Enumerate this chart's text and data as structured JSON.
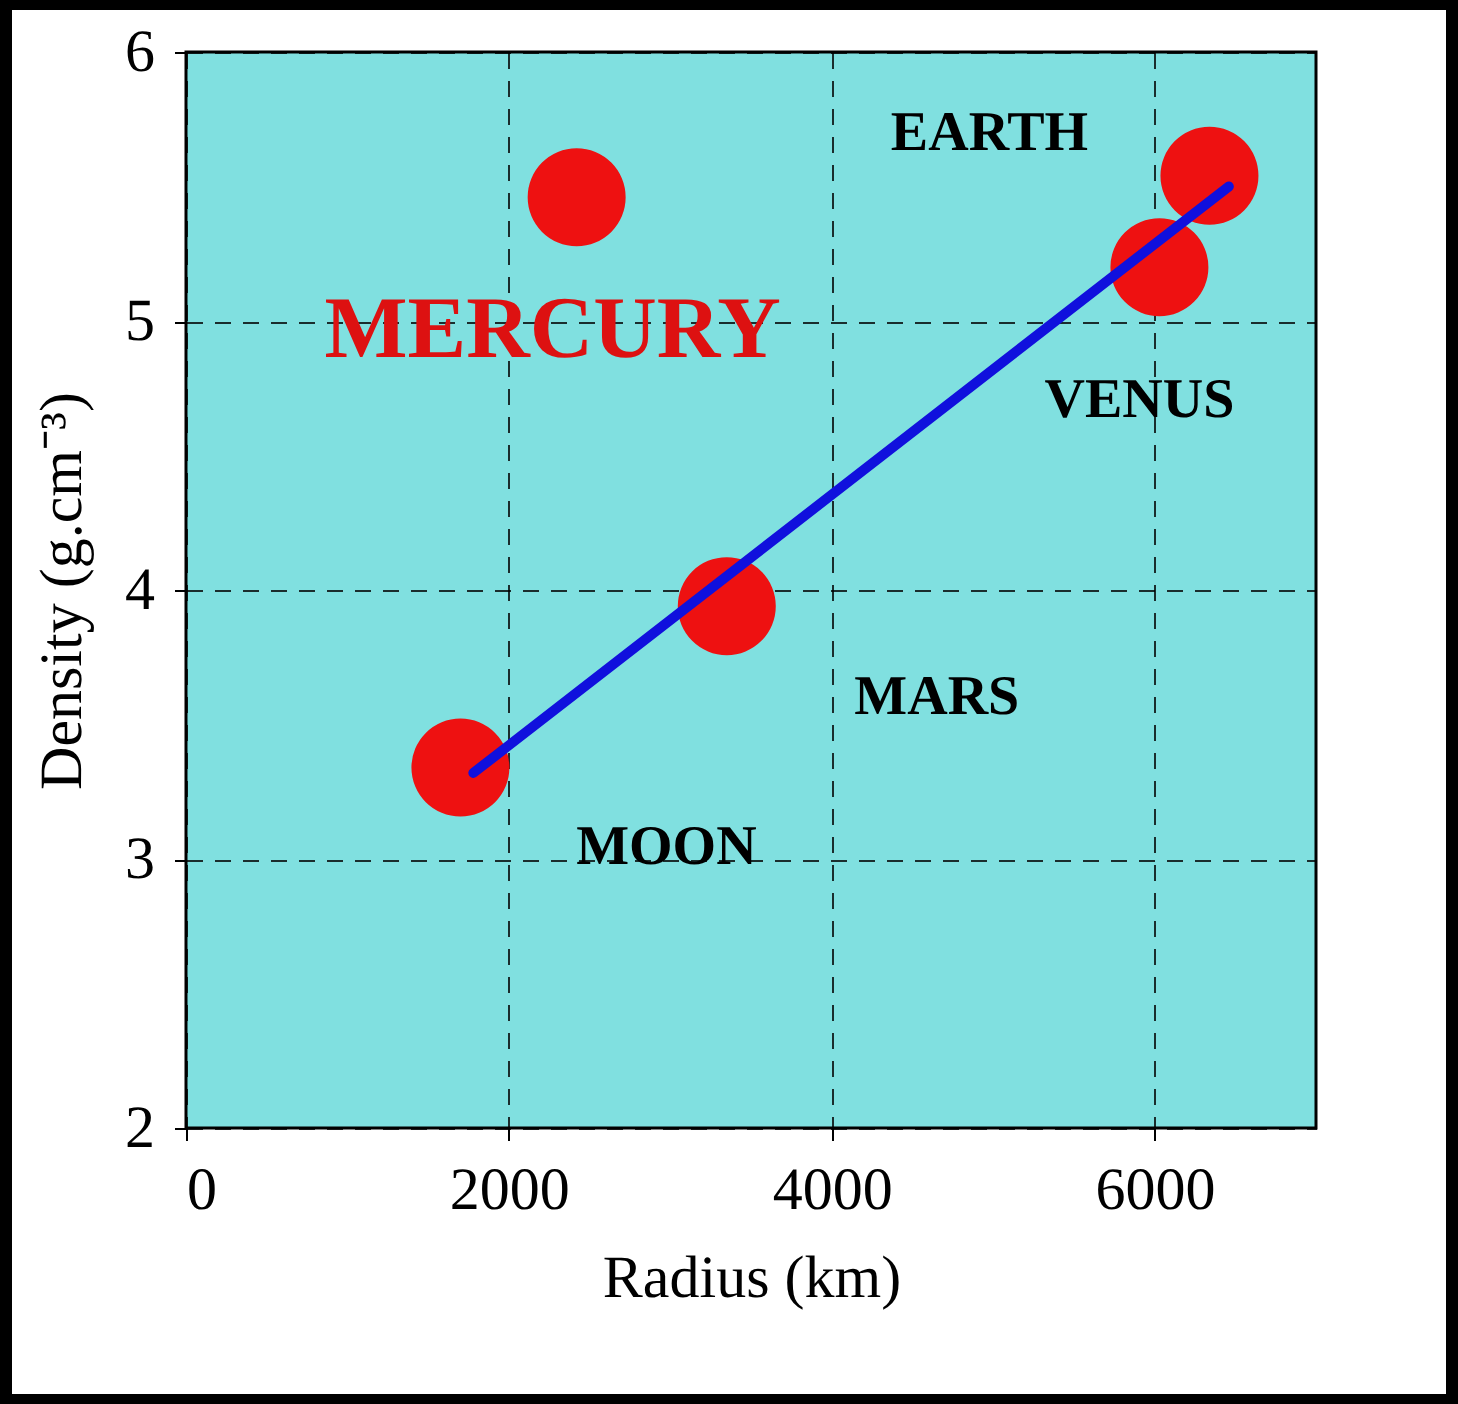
{
  "chart_data": {
    "type": "scatter",
    "xlabel": "Radius (km)",
    "ylabel": "Density (g.cm⁻³)",
    "xlim": [
      0,
      7000
    ],
    "xticks": [
      0,
      2000,
      4000,
      6000
    ],
    "ylim": [
      2,
      6
    ],
    "yticks": [
      2,
      3,
      4,
      5,
      6
    ],
    "grid": true,
    "series": [
      {
        "color": "#ee1111",
        "marker": "circle",
        "x": [
          1700,
          2420,
          3350,
          6030,
          6340
        ],
        "values": [
          3.34,
          5.46,
          3.94,
          5.2,
          5.54
        ]
      },
      {
        "type": "line",
        "marker": "none",
        "color": "#1010dd",
        "x": [
          1780,
          6460
        ],
        "values": [
          3.32,
          5.5
        ]
      }
    ],
    "annotations": [
      {
        "text": "MERCURY",
        "x": 2420,
        "y": 5.46
      },
      {
        "text": "EARTH",
        "x": 6340,
        "y": 5.54
      },
      {
        "text": "VENUS",
        "x": 6030,
        "y": 5.2
      },
      {
        "text": "MARS",
        "x": 3350,
        "y": 3.94
      },
      {
        "text": "MOON",
        "x": 1700,
        "y": 3.34
      }
    ]
  }
}
